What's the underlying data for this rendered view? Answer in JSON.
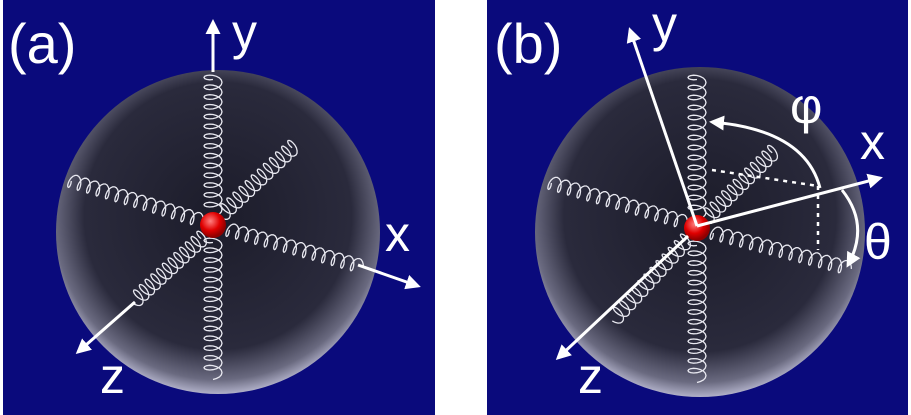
{
  "panels": [
    {
      "label": "(a)",
      "axes": {
        "x": "x",
        "y": "y",
        "z": "z"
      }
    },
    {
      "label": "(b)",
      "axes": {
        "x": "x",
        "y": "y",
        "z": "z"
      },
      "angles": {
        "phi": "φ",
        "theta": "θ"
      }
    }
  ]
}
